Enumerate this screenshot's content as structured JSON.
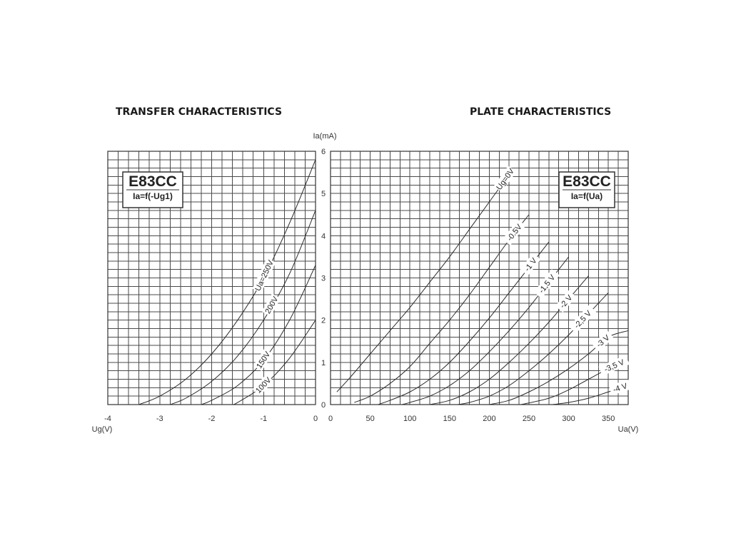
{
  "titles": {
    "left": "TRANSFER CHARACTERISTICS",
    "right": "PLATE CHARACTERISTICS"
  },
  "chart_data": [
    {
      "type": "line",
      "title": "TRANSFER CHARACTERISTICS",
      "tube": "E83CC",
      "function": "Ia=f(-Ug1)",
      "xlabel": "Ug(V)",
      "ylabel": "Ia(mA)",
      "xlim": [
        -4,
        0
      ],
      "ylim": [
        0,
        6
      ],
      "x_ticks": [
        "-4",
        "-3",
        "-2",
        "-1",
        "0"
      ],
      "grid": true,
      "series": [
        {
          "name": "Ua=250V",
          "x": [
            -3.4,
            -3.0,
            -2.5,
            -2.0,
            -1.5,
            -1.0,
            -0.5,
            0.0
          ],
          "values": [
            0.0,
            0.2,
            0.6,
            1.2,
            2.0,
            3.0,
            4.3,
            5.8
          ]
        },
        {
          "name": "200V",
          "x": [
            -2.8,
            -2.5,
            -2.0,
            -1.5,
            -1.0,
            -0.5,
            0.0
          ],
          "values": [
            0.0,
            0.15,
            0.55,
            1.15,
            2.0,
            3.1,
            4.6
          ]
        },
        {
          "name": "150V",
          "x": [
            -2.2,
            -2.0,
            -1.5,
            -1.0,
            -0.5,
            0.0
          ],
          "values": [
            0.0,
            0.1,
            0.45,
            1.05,
            2.0,
            3.3
          ]
        },
        {
          "name": "100V",
          "x": [
            -1.6,
            -1.5,
            -1.0,
            -0.5,
            0.0
          ],
          "values": [
            0.0,
            0.05,
            0.45,
            1.1,
            2.0
          ]
        }
      ]
    },
    {
      "type": "line",
      "title": "PLATE CHARACTERISTICS",
      "tube": "E83CC",
      "function": "Ia=f(Ua)",
      "xlabel": "Ua(V)",
      "ylabel": "Ia(mA)",
      "xlim": [
        0,
        375
      ],
      "ylim": [
        0,
        6
      ],
      "x_ticks": [
        "0",
        "50",
        "100",
        "150",
        "200",
        "250",
        "300",
        "350"
      ],
      "y_ticks": [
        "0",
        "1",
        "2",
        "3",
        "4",
        "5",
        "6"
      ],
      "grid": true,
      "series": [
        {
          "name": "Ug=0V",
          "x": [
            8,
            25,
            50,
            75,
            100,
            125,
            150,
            175,
            200,
            225
          ],
          "values": [
            0.3,
            0.65,
            1.2,
            1.75,
            2.3,
            2.9,
            3.5,
            4.15,
            4.8,
            5.45
          ]
        },
        {
          "name": "-0.5V",
          "x": [
            30,
            50,
            75,
            100,
            125,
            150,
            175,
            200,
            225,
            250
          ],
          "values": [
            0.05,
            0.2,
            0.5,
            0.9,
            1.45,
            2.0,
            2.6,
            3.25,
            3.9,
            4.5
          ]
        },
        {
          "name": "-1 V",
          "x": [
            60,
            75,
            100,
            125,
            150,
            175,
            200,
            225,
            250,
            275
          ],
          "values": [
            0.0,
            0.1,
            0.3,
            0.6,
            1.0,
            1.5,
            2.05,
            2.65,
            3.25,
            3.85
          ]
        },
        {
          "name": "-1,5 V",
          "x": [
            90,
            100,
            125,
            150,
            175,
            200,
            225,
            250,
            275,
            300
          ],
          "values": [
            0.0,
            0.05,
            0.2,
            0.45,
            0.8,
            1.25,
            1.75,
            2.3,
            2.9,
            3.5
          ]
        },
        {
          "name": "-2 V",
          "x": [
            125,
            150,
            175,
            200,
            225,
            250,
            275,
            300,
            325
          ],
          "values": [
            0.0,
            0.1,
            0.3,
            0.6,
            1.0,
            1.45,
            1.95,
            2.5,
            3.05
          ]
        },
        {
          "name": "-2,5 V",
          "x": [
            160,
            175,
            200,
            225,
            250,
            275,
            300,
            325,
            350
          ],
          "values": [
            0.0,
            0.05,
            0.2,
            0.45,
            0.8,
            1.2,
            1.65,
            2.15,
            2.65
          ]
        },
        {
          "name": "-3 V",
          "x": [
            200,
            225,
            250,
            275,
            300,
            325,
            350,
            375
          ],
          "values": [
            0.0,
            0.1,
            0.3,
            0.55,
            0.85,
            1.2,
            1.6,
            1.75
          ]
        },
        {
          "name": "-3,5 V",
          "x": [
            240,
            275,
            300,
            325,
            350,
            375
          ],
          "values": [
            0.0,
            0.15,
            0.35,
            0.6,
            0.85,
            1.05
          ]
        },
        {
          "name": "-4 V",
          "x": [
            280,
            300,
            325,
            350,
            375
          ],
          "values": [
            0.0,
            0.05,
            0.15,
            0.3,
            0.45
          ]
        }
      ]
    }
  ]
}
